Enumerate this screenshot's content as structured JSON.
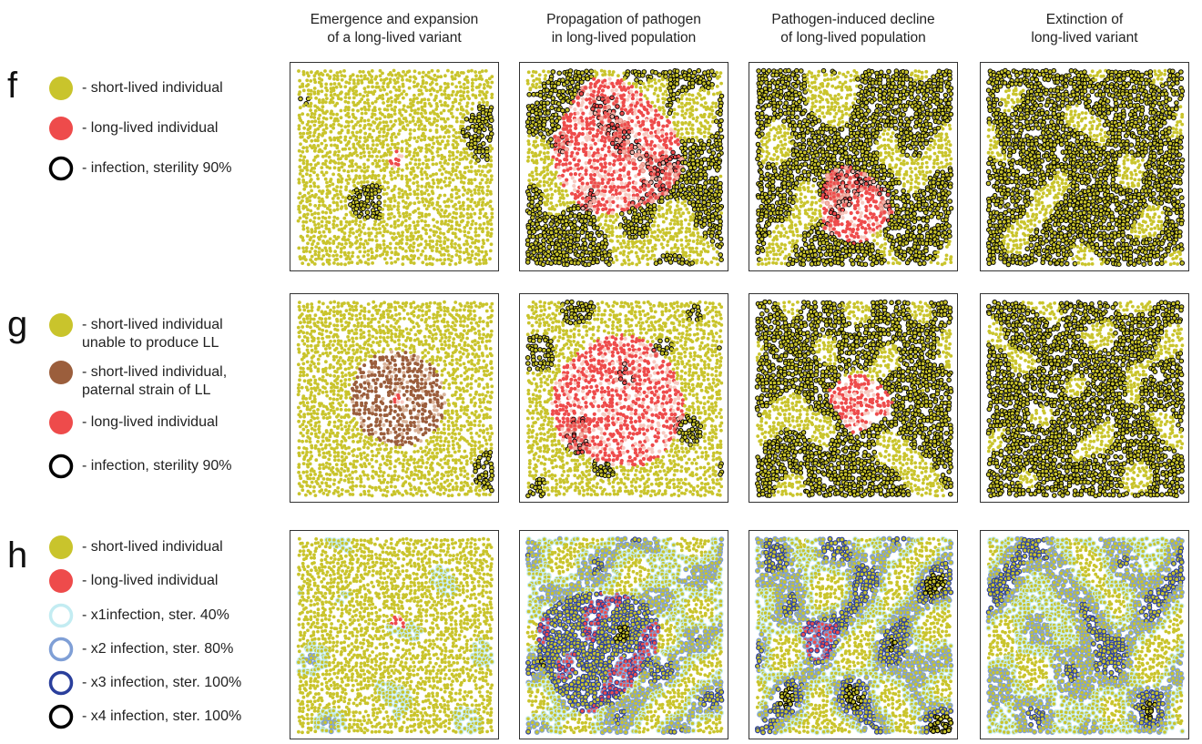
{
  "columns": [
    {
      "line1": "Emergence and expansion",
      "line2": "of a long-lived variant"
    },
    {
      "line1": "Propagation of pathogen",
      "line2": "in long-lived population"
    },
    {
      "line1": "Pathogen-induced decline",
      "line2": "of long-lived population"
    },
    {
      "line1": "Extinction of",
      "line2": "long-lived variant"
    }
  ],
  "rows": [
    {
      "letter": "f",
      "legend": [
        {
          "icon": "yellow-dot-icon",
          "color": "#c9c42c",
          "kind": "dot",
          "line1": "- short-lived individual",
          "line2": ""
        },
        {
          "icon": "red-dot-icon",
          "color": "#ee4b4b",
          "kind": "dot",
          "line1": "- long-lived individual",
          "line2": ""
        },
        {
          "icon": "black-ring-icon",
          "color": "#000000",
          "kind": "ring",
          "line1": "- infection, sterility 90%",
          "line2": ""
        }
      ]
    },
    {
      "letter": "g",
      "legend": [
        {
          "icon": "yellow-dot-icon",
          "color": "#c9c42c",
          "kind": "dot",
          "line1": "- short-lived individual",
          "line2": "unable to produce LL"
        },
        {
          "icon": "brown-dot-icon",
          "color": "#9b5e3c",
          "kind": "dot",
          "line1": "- short-lived individual,",
          "line2": "paternal strain of LL"
        },
        {
          "icon": "red-dot-icon",
          "color": "#ee4b4b",
          "kind": "dot",
          "line1": "- long-lived individual",
          "line2": ""
        },
        {
          "icon": "black-ring-icon",
          "color": "#000000",
          "kind": "ring",
          "line1": "- infection, sterility 90%",
          "line2": ""
        }
      ]
    },
    {
      "letter": "h",
      "legend": [
        {
          "icon": "yellow-dot-icon",
          "color": "#c9c42c",
          "kind": "dot",
          "line1": "- short-lived individual",
          "line2": ""
        },
        {
          "icon": "red-dot-icon",
          "color": "#ee4b4b",
          "kind": "dot",
          "line1": "- long-lived individual",
          "line2": ""
        },
        {
          "icon": "light-cyan-ring-icon",
          "color": "#c3ecf2",
          "kind": "ring",
          "line1": "- x1infection, ster. 40%",
          "line2": ""
        },
        {
          "icon": "light-blue-ring-icon",
          "color": "#7f9fd6",
          "kind": "ring",
          "line1": "- x2 infection, ster. 80%",
          "line2": ""
        },
        {
          "icon": "dark-blue-ring-icon",
          "color": "#2a3f9c",
          "kind": "ring",
          "line1": "- x3 infection, ster. 100%",
          "line2": ""
        },
        {
          "icon": "black-ring-icon",
          "color": "#000000",
          "kind": "ring",
          "line1": "- x4 infection, ster. 100%",
          "line2": ""
        }
      ]
    }
  ],
  "colors": {
    "short_lived": "#c9c42c",
    "paternal": "#9b5e3c",
    "long_lived": "#ee4b4b",
    "infection": "#000000",
    "x1": "#c3ecf2",
    "x2": "#7f9fd6",
    "x3": "#2a3f9c",
    "x4": "#000000"
  }
}
